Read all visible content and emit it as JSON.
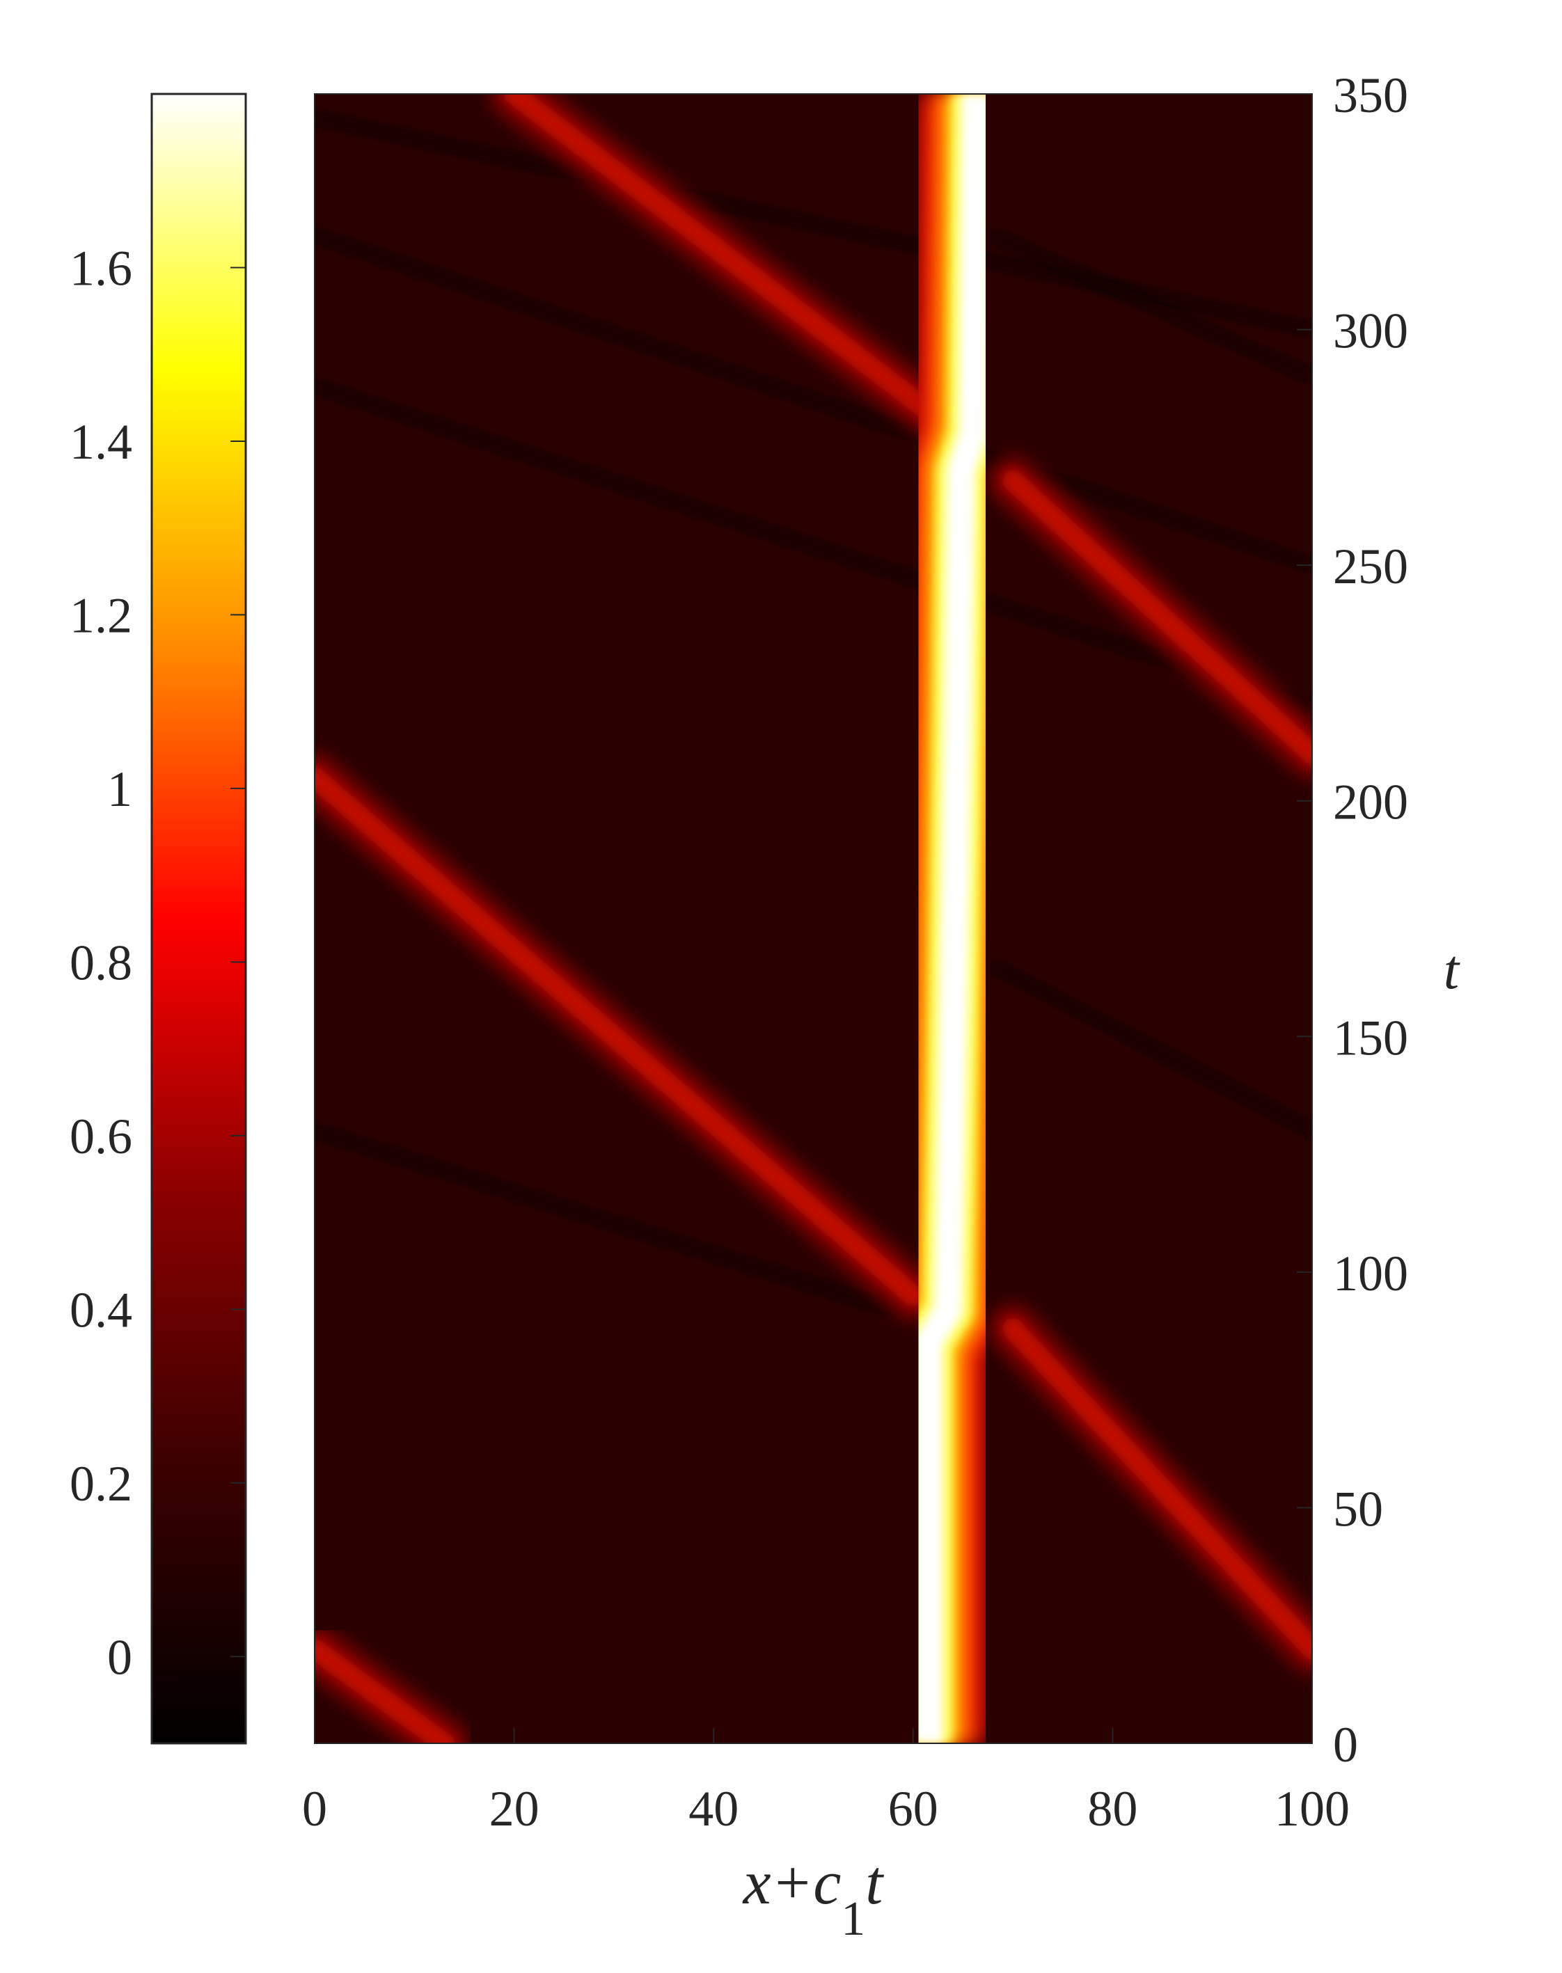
{
  "chart_data": {
    "type": "heatmap",
    "xlabel": {
      "main": "x+c",
      "subscript": "1",
      "tail": "t"
    },
    "ylabel": "t",
    "xlim": [
      0,
      100
    ],
    "ylim": [
      0,
      350
    ],
    "x_ticks": [
      "0",
      "20",
      "40",
      "60",
      "80",
      "100"
    ],
    "y_ticks": [
      "0",
      "50",
      "100",
      "150",
      "200",
      "250",
      "300",
      "350"
    ],
    "colorbar": {
      "range": [
        -0.1,
        1.8
      ],
      "ticks": [
        "0",
        "0.2",
        "0.4",
        "0.6",
        "0.8",
        "1",
        "1.2",
        "1.4",
        "1.6"
      ],
      "colormap": "hot",
      "colors": [
        "#000000",
        "#3a0000",
        "#8b0000",
        "#ff0000",
        "#ff8c00",
        "#ffff00",
        "#ffffff"
      ]
    },
    "background_value": 0.05,
    "colors": {
      "background": "#2a0000",
      "soliton": "#ffffff",
      "streak": "#c01000",
      "dark_line": "#0a0000"
    },
    "features": {
      "large_soliton": [
        {
          "t": 0,
          "x": 61.5
        },
        {
          "t": 85,
          "x": 61.5
        },
        {
          "t": 92,
          "x": 63.5
        },
        {
          "t": 150,
          "x": 64.0
        },
        {
          "t": 220,
          "x": 64.5
        },
        {
          "t": 270,
          "x": 64.8
        },
        {
          "t": 278,
          "x": 66.0
        },
        {
          "t": 350,
          "x": 66.3
        }
      ],
      "small_solitons": [
        {
          "points": [
            [
              0,
              20
            ],
            [
              13,
              0
            ]
          ]
        },
        {
          "points": [
            [
              0,
              205
            ],
            [
              60,
              95
            ]
          ]
        },
        {
          "points": [
            [
              70,
              88
            ],
            [
              100,
              20
            ]
          ]
        },
        {
          "points": [
            [
              20,
              350
            ],
            [
              62,
              282
            ]
          ]
        },
        {
          "points": [
            [
              70,
              268
            ],
            [
              100,
              210
            ]
          ]
        }
      ],
      "dark_lines": [
        {
          "points": [
            [
              0,
              130
            ],
            [
              58,
              92
            ]
          ]
        },
        {
          "points": [
            [
              0,
              288
            ],
            [
              100,
              220
            ]
          ]
        },
        {
          "points": [
            [
              0,
              320
            ],
            [
              100,
              250
            ]
          ]
        },
        {
          "points": [
            [
              0,
              345
            ],
            [
              100,
              300
            ]
          ]
        },
        {
          "points": [
            [
              68,
              165
            ],
            [
              100,
              130
            ]
          ]
        },
        {
          "points": [
            [
              68,
              320
            ],
            [
              100,
              290
            ]
          ]
        }
      ]
    }
  }
}
